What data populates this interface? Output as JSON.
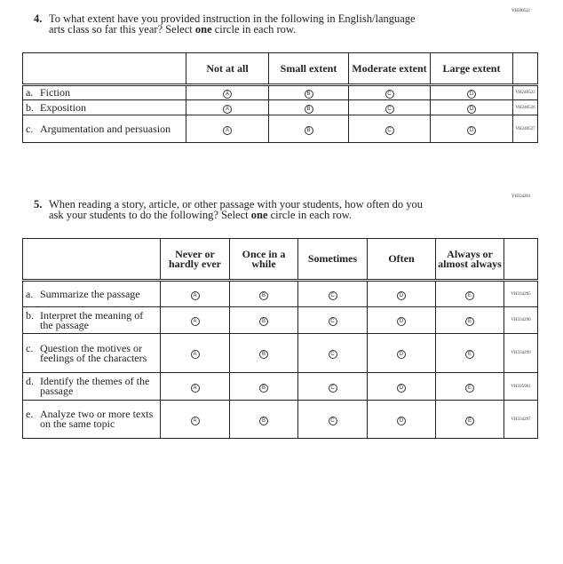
{
  "q4": {
    "code": "VH240522",
    "number": "4.",
    "text1": "To what extent have you provided instruction in the following in English/language",
    "text2a": "arts class so far this year? Select ",
    "bold": "one",
    "text2b": " circle in each row.",
    "headers": [
      "Not at all",
      "Small extent",
      "Moderate extent",
      "Large extent"
    ],
    "bubbles": [
      "A",
      "B",
      "C",
      "D"
    ],
    "rows": [
      {
        "letter": "a.",
        "label": "Fiction",
        "code": "VH240523"
      },
      {
        "letter": "b.",
        "label": "Exposition",
        "code": "VH240526"
      },
      {
        "letter": "c.",
        "label": "Argumentation and persuasion",
        "code": "VH240527"
      }
    ]
  },
  "q5": {
    "code": "VH334294",
    "number": "5.",
    "text1": "When reading a story, article, or other passage with your students, how often do you",
    "text2a": "ask your students to do the following? Select ",
    "bold": "one",
    "text2b": " circle in each row.",
    "headers": [
      "Never or hardly ever",
      "Once in a while",
      "Sometimes",
      "Often",
      "Always or almost always"
    ],
    "bubbles": [
      "A",
      "B",
      "C",
      "D",
      "E"
    ],
    "rows": [
      {
        "letter": "a.",
        "label": "Summarize the passage",
        "code": "VH334295"
      },
      {
        "letter": "b.",
        "label": "Interpret the meaning of the passage",
        "code": "VH334296"
      },
      {
        "letter": "c.",
        "label": "Question the motives or feelings of the characters",
        "code": "VH334299"
      },
      {
        "letter": "d.",
        "label": "Identify the themes of the passage",
        "code": "VH335901"
      },
      {
        "letter": "e.",
        "label": "Analyze two or more texts on the same topic",
        "code": "VH334297"
      }
    ]
  }
}
